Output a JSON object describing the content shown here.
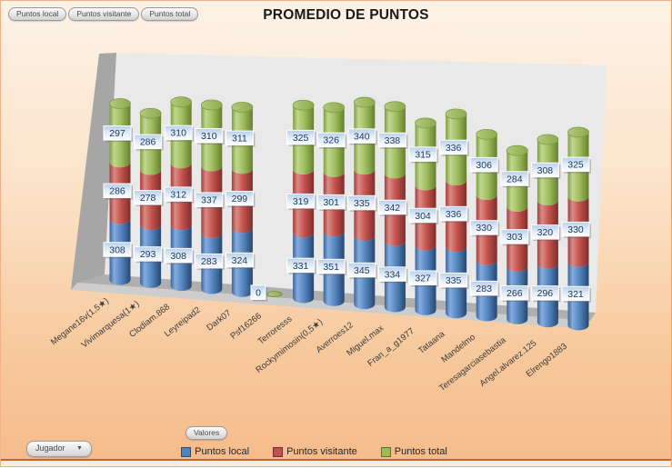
{
  "title": "PROMEDIO DE PUNTOS",
  "pivot_buttons": {
    "series_fields": [
      "Puntos local",
      "Puntos visitante",
      "Puntos total"
    ],
    "values_button": "Valores",
    "axis_button": "Jugador"
  },
  "legend": {
    "position": "bottom",
    "items": [
      {
        "label": "Puntos local",
        "color": "#4F81BD"
      },
      {
        "label": "Puntos visitante",
        "color": "#C0504D"
      },
      {
        "label": "Puntos total",
        "color": "#9BBB59"
      }
    ]
  },
  "chart_data": {
    "type": "bar",
    "subtype": "3d-stacked-cylinder",
    "title": "PROMEDIO DE PUNTOS",
    "categories": [
      "Megane16v(1,5★)",
      "Vivimarquesa(1★)",
      "Clodiam.868",
      "Leyreipad2",
      "Dark07",
      "Psf16266",
      "Terroresss",
      "Rockymimosin(0,5★)",
      "Averroes12",
      "Miguel.max",
      "Fran_a_g1977",
      "Tataana",
      "Mandelmo",
      "Teresagarciasebastia",
      "Angel.alvarez.125",
      "Elrengo1883"
    ],
    "series": [
      {
        "name": "Puntos local",
        "color": "#4F81BD",
        "values": [
          308,
          293,
          308,
          283,
          324,
          0,
          331,
          351,
          345,
          334,
          327,
          335,
          283,
          266,
          296,
          321
        ]
      },
      {
        "name": "Puntos visitante",
        "color": "#C0504D",
        "values": [
          286,
          278,
          312,
          337,
          299,
          0,
          319,
          301,
          335,
          342,
          304,
          336,
          330,
          303,
          320,
          330
        ]
      },
      {
        "name": "Puntos total",
        "color": "#9BBB59",
        "values": [
          297,
          286,
          310,
          310,
          311,
          0,
          325,
          326,
          340,
          338,
          315,
          336,
          306,
          284,
          308,
          325
        ]
      }
    ],
    "data_labels": true,
    "axis_field": "Jugador",
    "values_field": "Valores",
    "legend_position": "bottom"
  },
  "colors": {
    "background_top": "#FDF2E7",
    "background_bottom": "#F5BB8A",
    "back_wall": "#E9E9E9",
    "side_wall": "#A6A6A6",
    "floor_top": "#AFAFAF",
    "floor_front": "#CDCDCD",
    "label_bg_top": "#B9CFE9",
    "label_text": "#17375D",
    "category_text": "#3A3A3A",
    "border_bottom": "#C9622C",
    "border_right": "#EFA263"
  }
}
